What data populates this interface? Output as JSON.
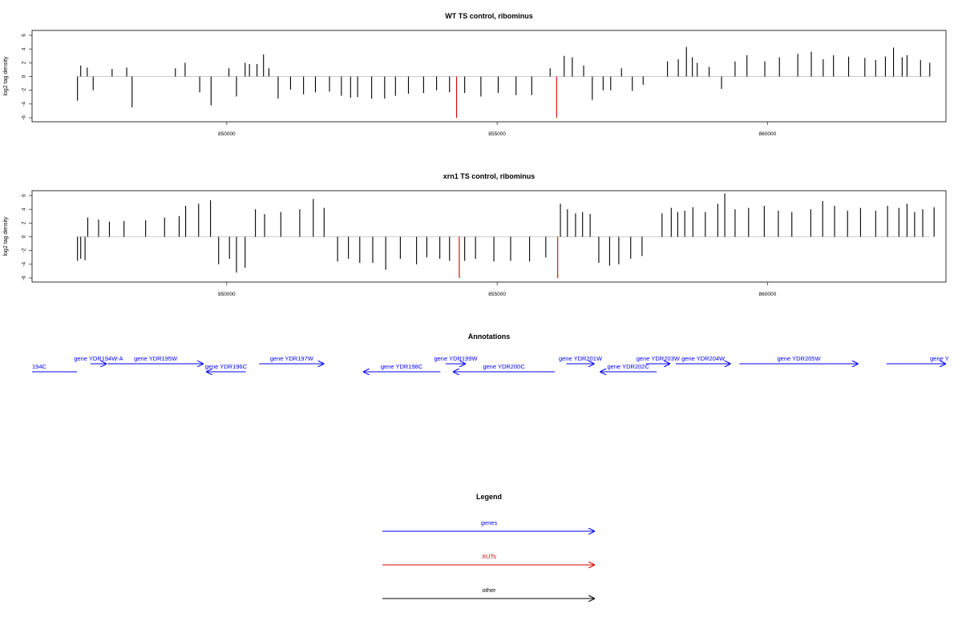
{
  "colors": {
    "genes": "#0000ff",
    "xuts": "#dd0000",
    "other": "#000000",
    "bars": "#000000"
  },
  "annotations_title": "Annotations",
  "legend": {
    "title": "Legend",
    "items": [
      {
        "label": "genes",
        "color": "#0000ff"
      },
      {
        "label": "XUTs",
        "color": "#dd0000"
      },
      {
        "label": "other",
        "color": "#000000"
      }
    ]
  },
  "genes": [
    {
      "label": "194C",
      "start": 846400,
      "end": 847230,
      "strand": "+",
      "row": 1,
      "color": "#0000ff"
    },
    {
      "label": "gene YDR194W-A",
      "start": 847480,
      "end": 847780,
      "strand": "+",
      "row": 0,
      "color": "#0000ff"
    },
    {
      "label": "gene YDR195W",
      "start": 847800,
      "end": 849570,
      "strand": "+",
      "row": 0,
      "color": "#0000ff"
    },
    {
      "label": "gene YDR196C",
      "start": 849620,
      "end": 850350,
      "strand": "-",
      "row": 1,
      "color": "#0000ff"
    },
    {
      "label": "gene YDR197W",
      "start": 850600,
      "end": 851800,
      "strand": "+",
      "row": 0,
      "color": "#0000ff"
    },
    {
      "label": "gene YDR198C",
      "start": 852520,
      "end": 853950,
      "strand": "-",
      "row": 1,
      "color": "#0000ff"
    },
    {
      "label": "gene YDR199W",
      "start": 854050,
      "end": 854420,
      "strand": "+",
      "row": 0,
      "color": "#0000ff"
    },
    {
      "label": "gene YDR200C",
      "start": 854180,
      "end": 856070,
      "strand": "-",
      "row": 1,
      "color": "#0000ff"
    },
    {
      "label": "gene YDR201W",
      "start": 856280,
      "end": 856800,
      "strand": "+",
      "row": 0,
      "color": "#0000ff"
    },
    {
      "label": "gene YDR202C",
      "start": 856900,
      "end": 857950,
      "strand": "-",
      "row": 1,
      "color": "#0000ff"
    },
    {
      "label": "gene YDR203W",
      "start": 857750,
      "end": 858200,
      "strand": "+",
      "row": 0,
      "color": "#0000ff"
    },
    {
      "label": "gene YDR204W",
      "start": 858300,
      "end": 859320,
      "strand": "+",
      "row": 0,
      "color": "#0000ff"
    },
    {
      "label": "gene YDR205W",
      "start": 859480,
      "end": 861680,
      "strand": "+",
      "row": 0,
      "color": "#0000ff"
    },
    {
      "label": "gene Y",
      "start": 862200,
      "end": 863300,
      "strand": "+",
      "row": 0,
      "color": "#0000ff"
    }
  ],
  "chart_data": [
    {
      "type": "bar",
      "title": "WT TS control, ribominus",
      "xlabel": "",
      "ylabel": "log2 tag density",
      "xlim": [
        846400,
        863300
      ],
      "ylim": [
        -6,
        6
      ],
      "xticks": [
        850000,
        855000,
        860000
      ],
      "yticks": [
        -6,
        -4,
        -2,
        0,
        2,
        4,
        6
      ],
      "grid": false,
      "highlights": [
        {
          "x": 854250,
          "value": -6.0,
          "color": "#dd0000"
        },
        {
          "x": 856100,
          "value": -6.0,
          "color": "#dd0000"
        }
      ],
      "series": [
        {
          "x": [
            847240,
            847300,
            847420,
            847530,
            847880,
            848150,
            848250,
            849050,
            849230,
            849500,
            849710,
            850040,
            850180,
            850340,
            850420,
            850560,
            850680,
            850780,
            850950,
            851180,
            851420,
            851640,
            851900,
            852120,
            852290,
            852420,
            852680,
            852920,
            853120,
            853360,
            853640,
            853880,
            854120,
            854400,
            854700,
            855020,
            855350,
            855640,
            855980,
            856240,
            856390,
            856600,
            856760,
            856960,
            857100,
            857300,
            857500,
            857700,
            858150,
            858350,
            858500,
            858610,
            858700,
            858920,
            859150,
            859400,
            859620,
            859950,
            860220,
            860560,
            860810,
            861030,
            861220,
            861500,
            861800,
            862000,
            862180,
            862330,
            862490,
            862580,
            862830,
            863000
          ],
          "values": [
            -3.5,
            1.6,
            1.3,
            -2.0,
            1.1,
            1.3,
            -4.5,
            1.2,
            2.0,
            -2.3,
            -4.2,
            1.2,
            -2.9,
            2.0,
            1.8,
            1.8,
            3.2,
            1.2,
            -3.2,
            -1.9,
            -2.6,
            -2.3,
            -2.2,
            -2.8,
            -3.1,
            -3.0,
            -3.2,
            -3.2,
            -2.8,
            -2.5,
            -2.4,
            -2.0,
            -2.3,
            -2.4,
            -2.9,
            -2.4,
            -2.7,
            -2.7,
            1.2,
            3.0,
            2.8,
            1.6,
            -3.4,
            -2.0,
            -2.0,
            1.2,
            -2.1,
            -1.2,
            2.2,
            2.5,
            4.3,
            2.8,
            2.0,
            1.4,
            -1.8,
            2.2,
            3.1,
            2.2,
            2.8,
            3.3,
            3.6,
            2.5,
            3.1,
            2.9,
            2.7,
            2.4,
            2.9,
            4.2,
            2.8,
            3.1,
            2.4,
            2.0
          ]
        }
      ]
    },
    {
      "type": "bar",
      "title": "xrn1 TS control, ribominus",
      "xlabel": "",
      "ylabel": "log2 tag density",
      "xlim": [
        846400,
        863300
      ],
      "ylim": [
        -6,
        6
      ],
      "xticks": [
        850000,
        855000,
        860000
      ],
      "yticks": [
        -6,
        -4,
        -2,
        0,
        2,
        4,
        6
      ],
      "grid": false,
      "highlights": [
        {
          "x": 854300,
          "value": -6.0,
          "color": "#dd0000"
        },
        {
          "x": 856120,
          "value": -6.0,
          "color": "#dd0000"
        }
      ],
      "series": [
        {
          "x": [
            847240,
            847300,
            847380,
            847430,
            847630,
            847830,
            848100,
            848500,
            848850,
            849120,
            849240,
            849480,
            849700,
            849850,
            850050,
            850180,
            850340,
            850530,
            850700,
            851000,
            851350,
            851600,
            851800,
            852050,
            852250,
            852460,
            852700,
            852940,
            853210,
            853510,
            853700,
            853940,
            854120,
            854400,
            854600,
            854940,
            855250,
            855600,
            855900,
            856170,
            856300,
            856450,
            856580,
            856720,
            856880,
            857080,
            857250,
            857470,
            857680,
            858050,
            858220,
            858340,
            858470,
            858620,
            858850,
            859080,
            859210,
            859400,
            859650,
            859940,
            860200,
            860450,
            860800,
            861020,
            861240,
            861480,
            861720,
            862000,
            862220,
            862430,
            862580,
            862720,
            862870,
            863080
          ],
          "values": [
            -3.5,
            -3.2,
            -3.4,
            2.8,
            2.5,
            2.2,
            2.3,
            2.4,
            2.8,
            3.0,
            4.5,
            4.8,
            5.3,
            -4.0,
            -3.2,
            -5.2,
            -4.5,
            4.0,
            3.3,
            3.6,
            4.0,
            5.5,
            4.2,
            -3.6,
            -3.2,
            -3.8,
            -3.8,
            -4.8,
            -3.2,
            -4.0,
            -3.0,
            -3.2,
            -3.5,
            -3.5,
            -3.2,
            -3.6,
            -3.5,
            -3.6,
            -3.0,
            4.8,
            4.0,
            3.4,
            3.6,
            3.3,
            -3.8,
            -4.2,
            -4.0,
            -3.2,
            -2.8,
            3.4,
            4.2,
            3.6,
            3.8,
            4.3,
            3.6,
            4.8,
            6.3,
            4.0,
            4.2,
            4.5,
            3.8,
            3.6,
            4.0,
            5.2,
            4.5,
            3.8,
            4.2,
            3.8,
            4.5,
            4.2,
            4.8,
            3.6,
            4.0,
            4.3
          ]
        }
      ]
    }
  ]
}
